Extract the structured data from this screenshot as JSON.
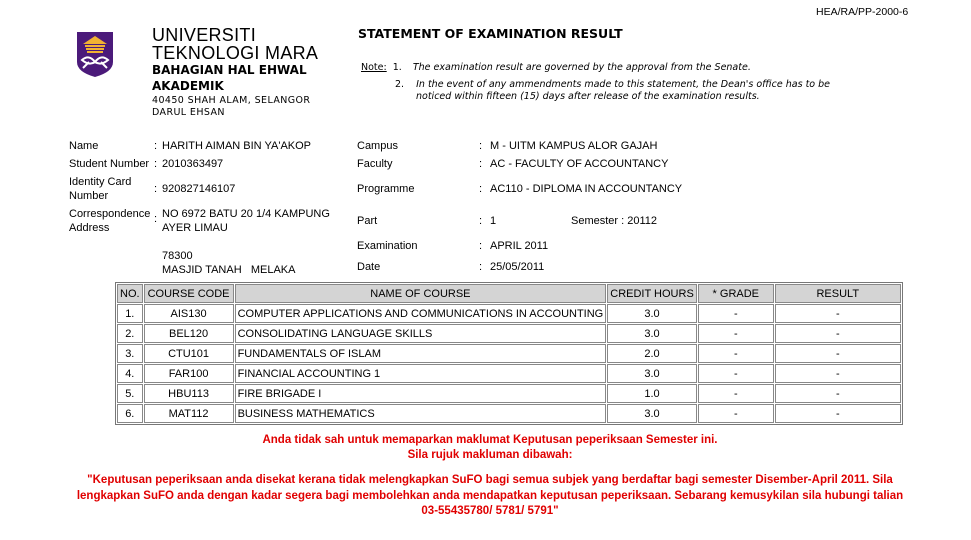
{
  "form_code": "HEA/RA/PP-2000-6",
  "header": {
    "university_line1": "UNIVERSITI",
    "university_line2": "TEKNOLOGI MARA",
    "department_line1": "BAHAGIAN HAL EHWAL",
    "department_line2": "AKADEMIK",
    "address_line1": "40450 SHAH ALAM, SELANGOR",
    "address_line2": "DARUL EHSAN",
    "logo": "uitm-crest-logo"
  },
  "title": "STATEMENT OF EXAMINATION RESULT",
  "notes": {
    "label": "Note:",
    "items": [
      {
        "num": "1.",
        "text": "The examination result are governed by the approval from the Senate."
      },
      {
        "num": "2.",
        "line1": "In the event of any ammendments made to this statement, the Dean's office has to be",
        "line2": "noticed within fifteen (15) days after release of the examination results."
      }
    ]
  },
  "student": {
    "name_label": "Name",
    "name": "HARITH AIMAN BIN YA'AKOP",
    "student_number_label": "Student Number",
    "student_number": "2010363497",
    "ic_label_line1": "Identity Card",
    "ic_label_line2": "Number",
    "ic": "920827146107",
    "address_label_line1": "Correspondence",
    "address_label_line2": "Address",
    "address_line1": "NO 6972 BATU 20 1/4 KAMPUNG",
    "address_line2": "AYER LIMAU",
    "address_line3": "78300",
    "address_line4": "MASJID TANAH   MELAKA",
    "colon": ":"
  },
  "academic": {
    "campus_label": "Campus",
    "campus": "M - UITM KAMPUS ALOR GAJAH",
    "faculty_label": "Faculty",
    "faculty": "AC - FACULTY OF ACCOUNTANCY",
    "programme_label": "Programme",
    "programme": "AC110 - DIPLOMA IN ACCOUNTANCY",
    "part_label": "Part",
    "part": "1",
    "semester_label": "Semester : 20112",
    "examination_label": "Examination",
    "examination": "APRIL 2011",
    "date_label": "Date",
    "date": "25/05/2011"
  },
  "table": {
    "headers": [
      "NO.",
      "COURSE CODE",
      "NAME OF COURSE",
      "CREDIT HOURS",
      "* GRADE",
      "RESULT"
    ],
    "rows": [
      [
        "1.",
        "AIS130",
        "COMPUTER APPLICATIONS AND COMMUNICATIONS IN ACCOUNTING",
        "3.0",
        "-",
        "-"
      ],
      [
        "2.",
        "BEL120",
        "CONSOLIDATING LANGUAGE SKILLS",
        "3.0",
        "-",
        "-"
      ],
      [
        "3.",
        "CTU101",
        "FUNDAMENTALS OF ISLAM",
        "2.0",
        "-",
        "-"
      ],
      [
        "4.",
        "FAR100",
        "FINANCIAL ACCOUNTING 1",
        "3.0",
        "-",
        "-"
      ],
      [
        "5.",
        "HBU113",
        "FIRE BRIGADE I",
        "1.0",
        "-",
        "-"
      ],
      [
        "6.",
        "MAT112",
        "BUSINESS MATHEMATICS",
        "3.0",
        "-",
        "-"
      ]
    ]
  },
  "warning": {
    "line1": "Anda tidak sah untuk memaparkan maklumat Keputusan peperiksaan Semester ini.",
    "line2": "Sila rujuk makluman dibawah:",
    "msg1": "\"Keputusan peperiksaan anda disekat kerana tidak melengkapkan SuFO bagi semua subjek yang berdaftar bagi semester Disember-April 2011. Sila",
    "msg2": "lengkapkan SuFO anda dengan kadar segera bagi membolehkan anda mendapatkan keputusan peperiksaan. Sebarang kemusykilan sila hubungi talian",
    "msg3": "03-55435780/ 5781/ 5791\"",
    "color": "#e00000"
  }
}
